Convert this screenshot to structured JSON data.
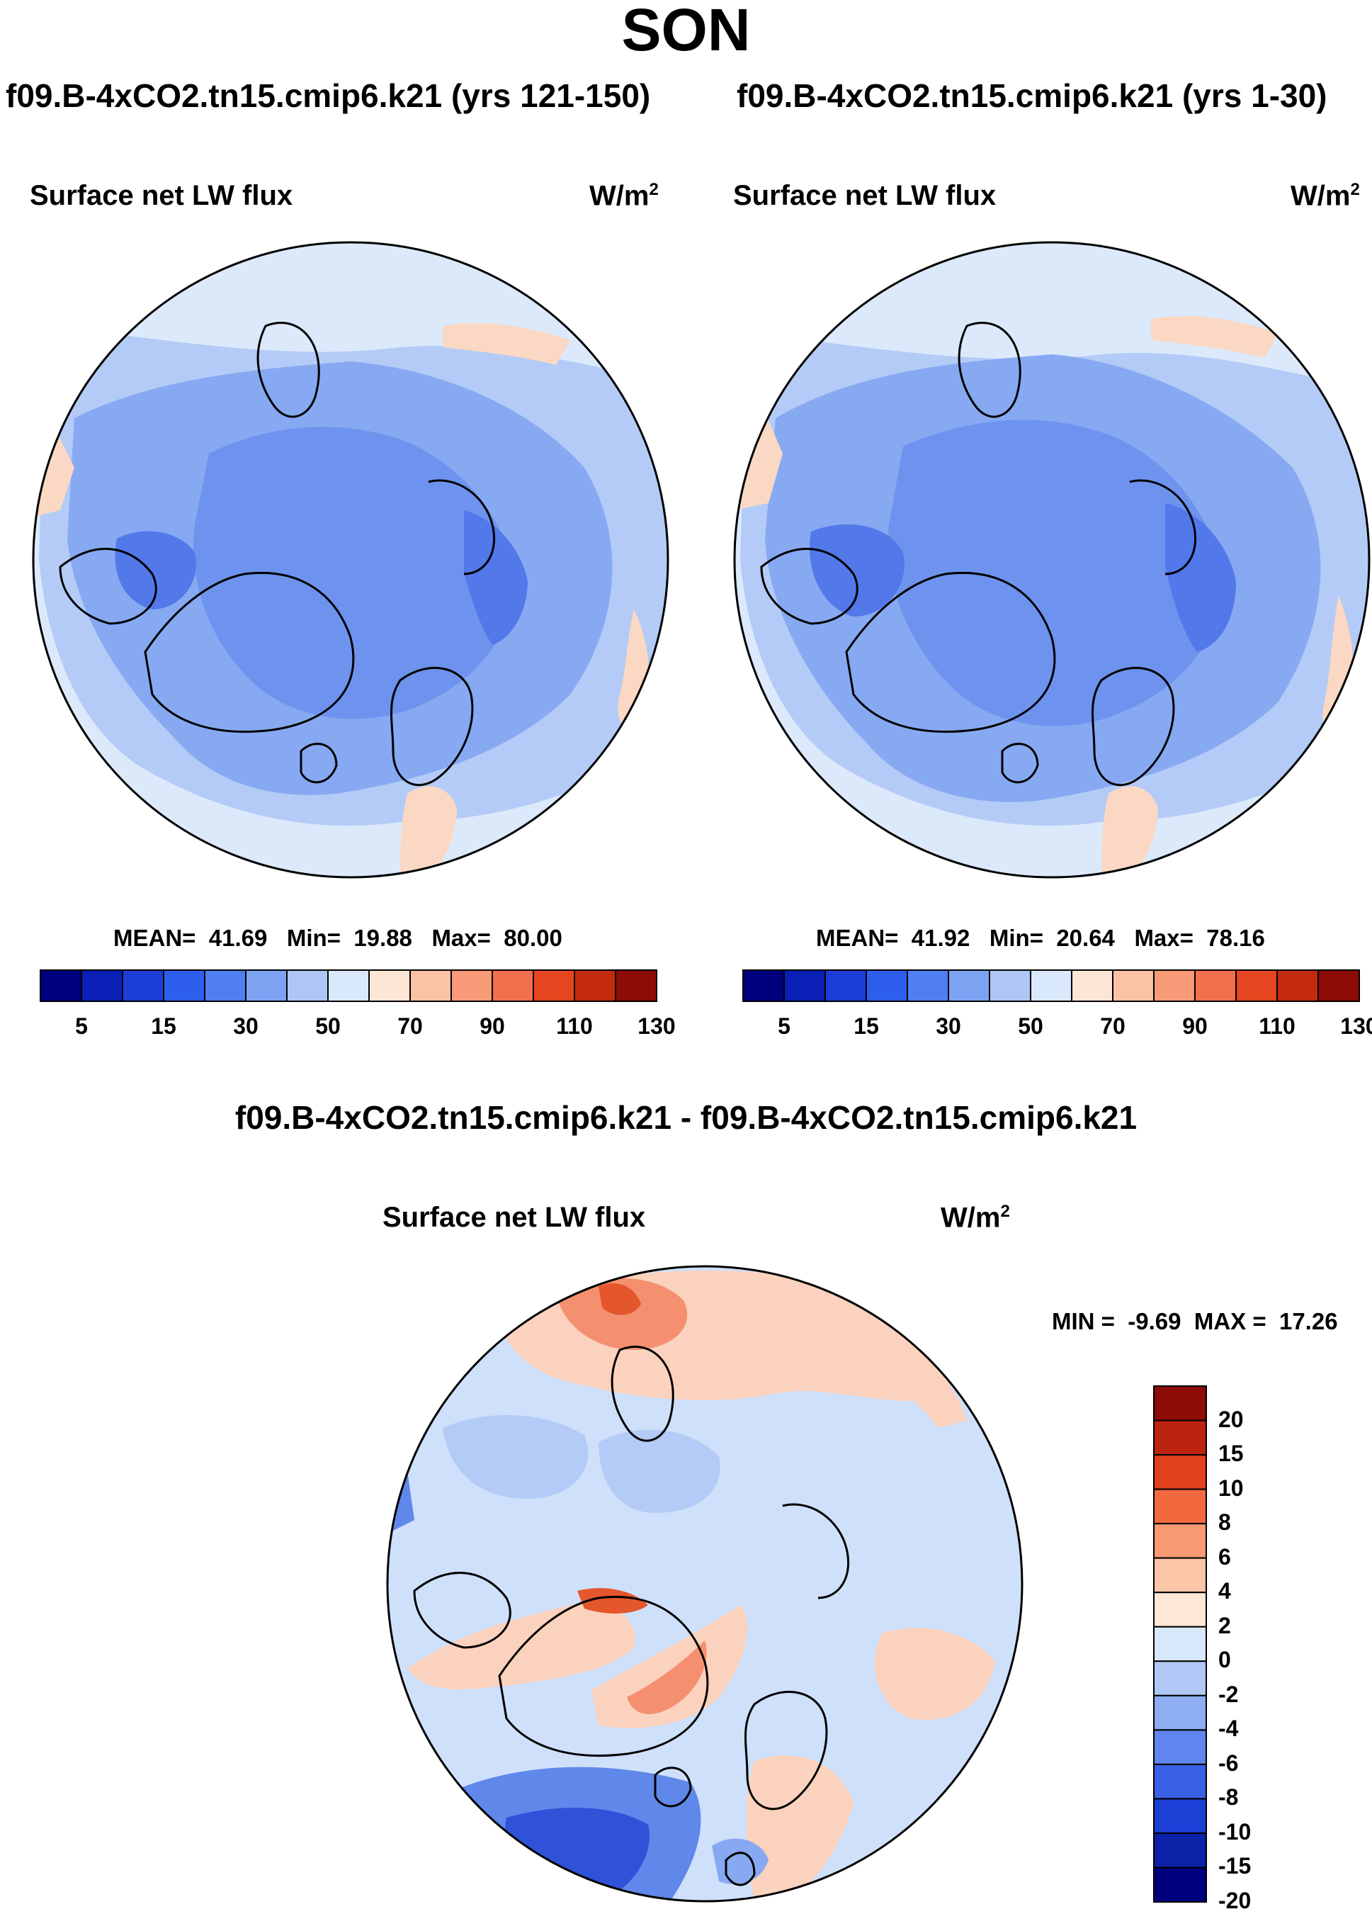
{
  "season": "SON",
  "panels": [
    {
      "model_title": "f09.B-4xCO2.tn15.cmip6.k21 (yrs 121-150)",
      "variable": "Surface net LW flux",
      "unit_base": "W/m",
      "unit_exp": "2",
      "stats": {
        "mean_label": "MEAN=",
        "mean": "41.69",
        "min_label": "Min=",
        "min": "19.88",
        "max_label": "Max=",
        "max": "80.00"
      }
    },
    {
      "model_title": "f09.B-4xCO2.tn15.cmip6.k21 (yrs 1-30)",
      "variable": "Surface net LW flux",
      "unit_base": "W/m",
      "unit_exp": "2",
      "stats": {
        "mean_label": "MEAN=",
        "mean": "41.92",
        "min_label": "Min=",
        "min": "20.64",
        "max_label": "Max=",
        "max": "78.16"
      }
    }
  ],
  "colorbar": {
    "colors": [
      "#00007f",
      "#0a1fb5",
      "#1d3ed6",
      "#2e5fec",
      "#4f7ff0",
      "#7ea2f2",
      "#aec6f5",
      "#d9e9fb",
      "#fde6d6",
      "#fbc2a6",
      "#f79a77",
      "#f3704c",
      "#e5461f",
      "#c42a0e",
      "#8e0c08"
    ],
    "labels": [
      "5",
      "15",
      "30",
      "50",
      "70",
      "90",
      "110",
      "130"
    ]
  },
  "diff": {
    "title": "f09.B-4xCO2.tn15.cmip6.k21 - f09.B-4xCO2.tn15.cmip6.k21",
    "variable": "Surface net LW flux",
    "unit_base": "W/m",
    "unit_exp": "2",
    "minmax": {
      "min_label": "MIN =",
      "min": "-9.69",
      "max_label": "MAX =",
      "max": "17.26"
    },
    "colorbar": {
      "colors": [
        "#8e0c08",
        "#bd2410",
        "#e1401c",
        "#f3693f",
        "#f89a73",
        "#fbc5a7",
        "#fde7d6",
        "#d8e8fb",
        "#b0c8f6",
        "#8daef2",
        "#5f86ee",
        "#3861e6",
        "#1c3fd5",
        "#0c22a8",
        "#00007f"
      ],
      "labels": [
        "20",
        "15",
        "10",
        "8",
        "6",
        "4",
        "2",
        "0",
        "-2",
        "-4",
        "-6",
        "-8",
        "-10",
        "-15",
        "-20"
      ]
    }
  },
  "map_colors": {
    "pale": "#dbe9fb",
    "light": "#b3cbf6",
    "medium": "#87a9f2",
    "deep": "#6e93ee",
    "darker": "#5278ea",
    "warm": "#fbd8c3",
    "diff_base": "#cfe0fa",
    "diff_warm": "#fbd2bd",
    "diff_hot": "#f49070",
    "diff_red": "#e4572c",
    "diff_cold": "#6087ea",
    "diff_deep": "#2f52d8"
  }
}
